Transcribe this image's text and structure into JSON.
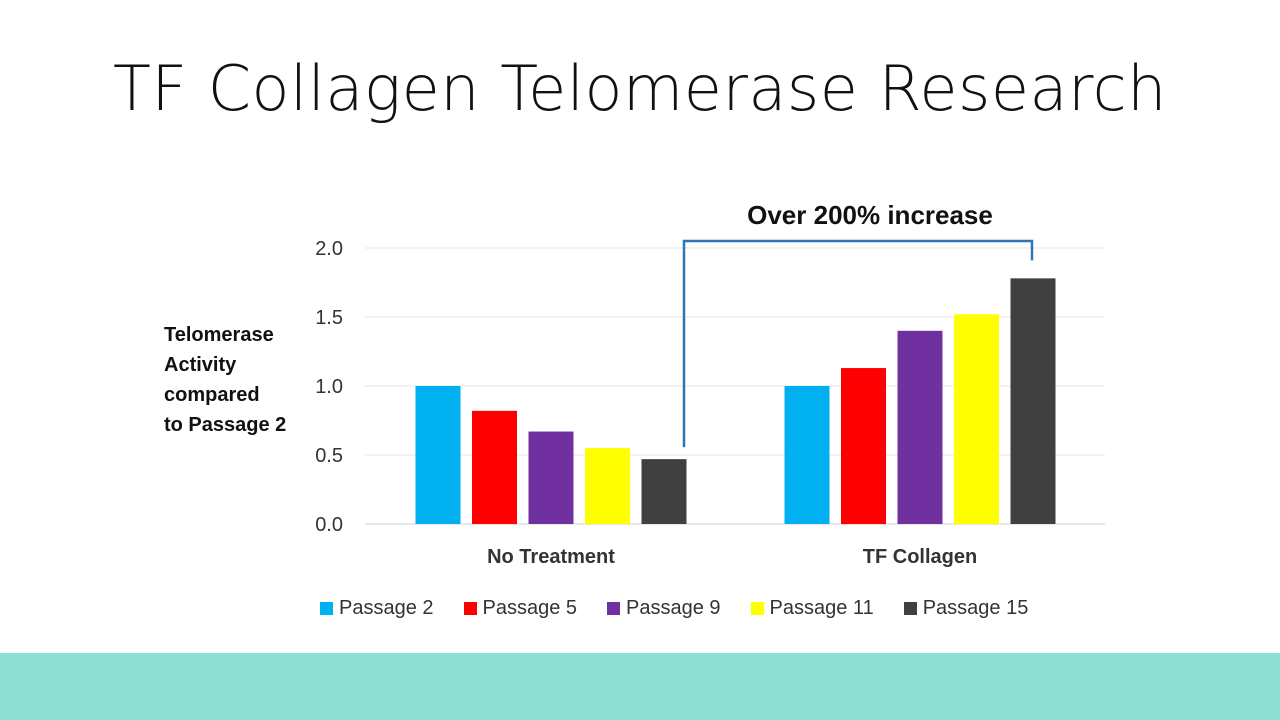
{
  "slide": {
    "title": "TF Collagen Telomerase Research"
  },
  "chart_data": {
    "type": "bar",
    "title": "",
    "ylabel_lines": [
      "Telomerase",
      "Activity",
      "compared",
      "to Passage 2"
    ],
    "xlabel": "",
    "categories": [
      "No Treatment",
      "TF Collagen"
    ],
    "ylim": [
      0,
      2.0
    ],
    "yticks": [
      "0.0",
      "0.5",
      "1.0",
      "1.5",
      "2.0"
    ],
    "grid": true,
    "legend_position": "bottom",
    "series": [
      {
        "name": "Passage 2",
        "color": "#00b0f0",
        "values": [
          1.0,
          1.0
        ]
      },
      {
        "name": "Passage 5",
        "color": "#ff0000",
        "values": [
          0.82,
          1.13
        ]
      },
      {
        "name": "Passage 9",
        "color": "#7030a0",
        "values": [
          0.67,
          1.4
        ]
      },
      {
        "name": "Passage 11",
        "color": "#ffff00",
        "values": [
          0.55,
          1.52
        ]
      },
      {
        "name": "Passage 15",
        "color": "#404040",
        "values": [
          0.47,
          1.78
        ]
      }
    ],
    "annotation": {
      "text": "Over 200%  increase",
      "from": {
        "category": 0,
        "series": 4
      },
      "to": {
        "category": 1,
        "series": 4
      },
      "color": "#2e75b6"
    }
  }
}
